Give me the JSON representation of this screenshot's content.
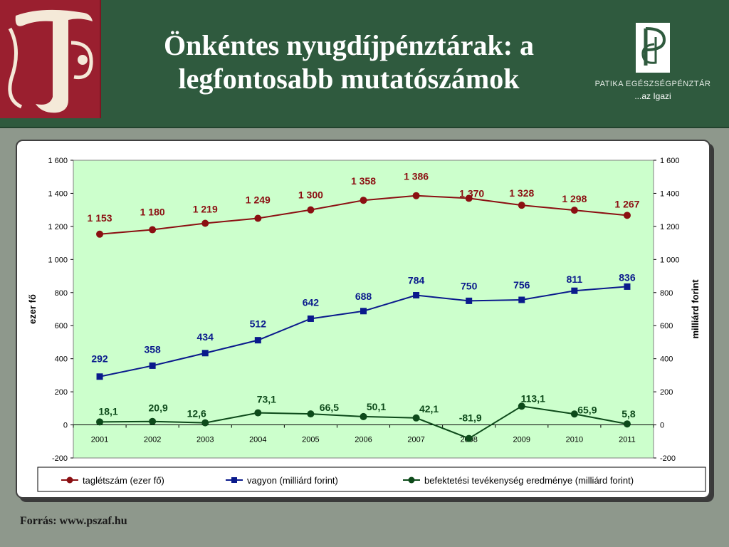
{
  "header": {
    "title_line1": "Önkéntes nyugdíjpénztárak: a",
    "title_line2": "legfontosabb mutatószámok",
    "brand_name": "PATIKA EGÉSZSÉGPÉNZTÁR",
    "brand_tagline": "...az Igazi"
  },
  "footer": {
    "source": "Forrás: www.pszaf.hu"
  },
  "chart_data": {
    "type": "line",
    "title": "",
    "x": [
      "2001",
      "2002",
      "2003",
      "2004",
      "2005",
      "2006",
      "2007",
      "2008",
      "2009",
      "2010",
      "2011"
    ],
    "ylabel": "ezer fő",
    "ylabel_right": "milliárd forint",
    "ylim": [
      -200,
      1600
    ],
    "ylim_right": [
      -200,
      1600
    ],
    "yticks": [
      "-200",
      "0",
      "200",
      "400",
      "600",
      "800",
      "1 000",
      "1 200",
      "1 400",
      "1 600"
    ],
    "grid": false,
    "plot_background": "#ccffcc",
    "legend_position": "bottom",
    "series": [
      {
        "name": "taglétszám (ezer fő)",
        "color": "#8b0f12",
        "marker": "circle",
        "values": [
          1153,
          1180,
          1219,
          1249,
          1300,
          1358,
          1386,
          1370,
          1328,
          1298,
          1267
        ],
        "labels": [
          "1 153",
          "1 180",
          "1 219",
          "1 249",
          "1 300",
          "1 358",
          "1 386",
          "1 370",
          "1 328",
          "1 298",
          "1 267"
        ]
      },
      {
        "name": "vagyon (milliárd forint)",
        "color": "#0a1a8c",
        "marker": "square",
        "values": [
          292,
          358,
          434,
          512,
          642,
          688,
          784,
          750,
          756,
          811,
          836
        ],
        "labels": [
          "292",
          "358",
          "434",
          "512",
          "642",
          "688",
          "784",
          "750",
          "756",
          "811",
          "836"
        ]
      },
      {
        "name": "befektetési tevékenység eredménye (milliárd forint)",
        "color": "#0d4a1a",
        "marker": "circle",
        "values": [
          18.1,
          20.9,
          12.6,
          73.1,
          66.5,
          50.1,
          42.1,
          -81.9,
          113.1,
          65.9,
          5.8
        ],
        "labels": [
          "18,1",
          "20,9",
          "12,6",
          "73,1",
          "66,5",
          "50,1",
          "42,1",
          "-81,9",
          "113,1",
          "65,9",
          "5,8"
        ]
      }
    ]
  }
}
